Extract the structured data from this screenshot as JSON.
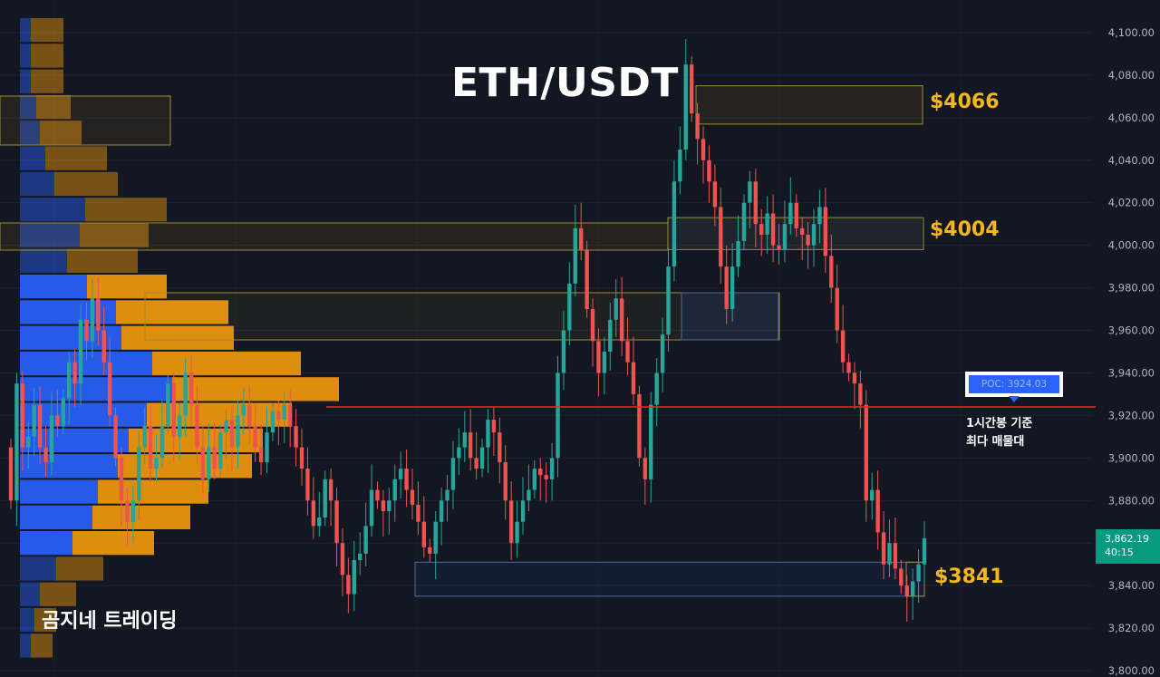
{
  "title": "ETH/USDT",
  "watermark": "곰지네 트레이딩",
  "zones": [
    {
      "label": "$4066",
      "low": 4057,
      "high": 4075
    },
    {
      "label": "$4004",
      "low": 3998,
      "high": 4013
    },
    {
      "label": "$3841",
      "low": 3835,
      "high": 3851
    }
  ],
  "poc": {
    "label": "POC: 3924.03",
    "value": 3924.03
  },
  "note": {
    "line1": "1시간봉 기준",
    "line2": "최다 매물대"
  },
  "last_price": {
    "price": "3,862.19",
    "countdown": "40:15"
  },
  "colors": {
    "background": "#131722",
    "up": "#26a69a",
    "down": "#ef5350",
    "poc_line": "#ff2020",
    "zone": "#f5b619",
    "profile_buy": "#2962ff",
    "profile_sell": "#f59a0b"
  },
  "chart_data": {
    "type": "candlestick",
    "title": "ETH/USDT",
    "y_axis_ticks": [
      "4,100.00",
      "4,080.00",
      "4,060.00",
      "4,040.00",
      "4,020.00",
      "4,000.00",
      "3,980.00",
      "3,960.00",
      "3,940.00",
      "3,920.00",
      "3,900.00",
      "3,880.00",
      "3,860.00",
      "3,840.00",
      "3,820.00",
      "3,800.00"
    ],
    "ylim": [
      3800,
      4104
    ],
    "grid": true,
    "candles_close": [
      3880,
      3935,
      3905,
      3910,
      3925,
      3905,
      3898,
      3920,
      3915,
      3928,
      3945,
      3935,
      3965,
      3955,
      3975,
      3960,
      3945,
      3920,
      3900,
      3880,
      3870,
      3880,
      3905,
      3915,
      3895,
      3900,
      3915,
      3935,
      3910,
      3920,
      3940,
      3925,
      3905,
      3890,
      3905,
      3895,
      3912,
      3918,
      3905,
      3920,
      3925,
      3915,
      3905,
      3898,
      3912,
      3922,
      3918,
      3925,
      3915,
      3905,
      3895,
      3880,
      3868,
      3872,
      3890,
      3880,
      3860,
      3845,
      3836,
      3852,
      3855,
      3868,
      3885,
      3880,
      3875,
      3880,
      3890,
      3895,
      3885,
      3878,
      3870,
      3858,
      3855,
      3870,
      3880,
      3885,
      3900,
      3905,
      3912,
      3900,
      3895,
      3905,
      3918,
      3912,
      3898,
      3880,
      3860,
      3870,
      3880,
      3885,
      3895,
      3892,
      3890,
      3900,
      3940,
      3960,
      3982,
      4008,
      3998,
      3970,
      3955,
      3940,
      3950,
      3965,
      3975,
      3955,
      3945,
      3930,
      3900,
      3890,
      3925,
      3940,
      3958,
      3990,
      4030,
      4045,
      4085,
      4062,
      4050,
      4040,
      4030,
      4018,
      3990,
      3970,
      3990,
      4002,
      4020,
      4030,
      4010,
      4005,
      4015,
      4000,
      3998,
      4010,
      4020,
      4008,
      4005,
      4000,
      4010,
      4018,
      3995,
      3980,
      3960,
      3945,
      3940,
      3935,
      3925,
      3880,
      3885,
      3865,
      3850,
      3860,
      3848,
      3840,
      3835,
      3842,
      3850,
      3862.19
    ],
    "volume_profile_levels_price": [
      4100,
      3800
    ],
    "poc": 3924.03,
    "annotations": [
      "$4066",
      "$4004",
      "$3841",
      "POC: 3924.03",
      "1시간봉 기준",
      "최다 매물대"
    ],
    "last_price": 3862.19
  }
}
